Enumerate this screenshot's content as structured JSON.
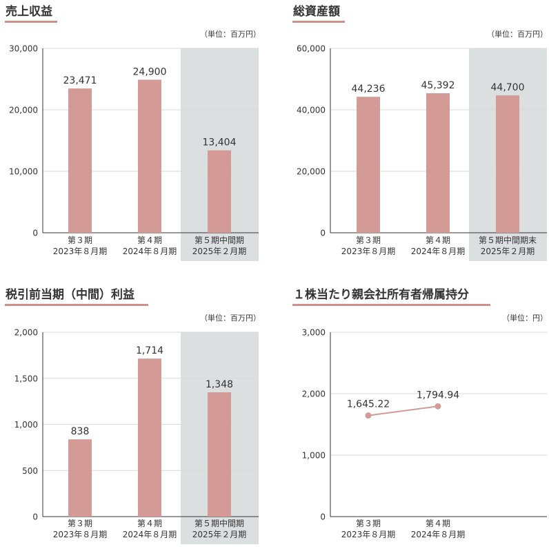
{
  "colors": {
    "bar": "#d49a95",
    "line": "#d49a95",
    "shade": "#dcdfdf",
    "underline": "#cf8f8a",
    "axis": "#333333",
    "grid": "#d9d9d9",
    "text": "#333333"
  },
  "chart_data": [
    {
      "type": "bar",
      "title": "売上収益",
      "unit": "（単位：百万円）",
      "ylim": [
        0,
        30000
      ],
      "yticks": [
        "0",
        "10,000",
        "20,000",
        "30,000"
      ],
      "ytick_values": [
        0,
        10000,
        20000,
        30000
      ],
      "shaded_category": 2,
      "categories": [
        {
          "label1": "第３期",
          "label2": "2023年８月期"
        },
        {
          "label1": "第４期",
          "label2": "2024年８月期"
        },
        {
          "label1": "第５期中間期",
          "label2": "2025年２月期"
        }
      ],
      "values": [
        23471,
        24900,
        13404
      ],
      "value_labels": [
        "23,471",
        "24,900",
        "13,404"
      ]
    },
    {
      "type": "bar",
      "title": "総資産額",
      "unit": "（単位：百万円）",
      "ylim": [
        0,
        60000
      ],
      "yticks": [
        "0",
        "20,000",
        "40,000",
        "60,000"
      ],
      "ytick_values": [
        0,
        20000,
        40000,
        60000
      ],
      "shaded_category": 2,
      "categories": [
        {
          "label1": "第３期",
          "label2": "2023年８月期"
        },
        {
          "label1": "第４期",
          "label2": "2024年８月期"
        },
        {
          "label1": "第５期中間期末",
          "label2": "2025年２月期"
        }
      ],
      "values": [
        44236,
        45392,
        44700
      ],
      "value_labels": [
        "44,236",
        "45,392",
        "44,700"
      ]
    },
    {
      "type": "bar",
      "title": "税引前当期（中間）利益",
      "unit": "（単位：百万円）",
      "ylim": [
        0,
        2000
      ],
      "yticks": [
        "0",
        "500",
        "1,000",
        "1,500",
        "2,000"
      ],
      "ytick_values": [
        0,
        500,
        1000,
        1500,
        2000
      ],
      "shaded_category": 2,
      "categories": [
        {
          "label1": "第３期",
          "label2": "2023年８月期"
        },
        {
          "label1": "第４期",
          "label2": "2024年８月期"
        },
        {
          "label1": "第５期中間期",
          "label2": "2025年２月期"
        }
      ],
      "values": [
        838,
        1714,
        1348
      ],
      "value_labels": [
        "838",
        "1,714",
        "1,348"
      ]
    },
    {
      "type": "line",
      "title": "１株当たり親会社所有者帰属持分",
      "unit": "（単位：円）",
      "ylim": [
        0,
        3000
      ],
      "yticks": [
        "0",
        "1,000",
        "2,000",
        "3,000"
      ],
      "ytick_values": [
        0,
        1000,
        2000,
        3000
      ],
      "shaded_category": null,
      "slots": 3,
      "categories": [
        {
          "label1": "第３期",
          "label2": "2023年８月期"
        },
        {
          "label1": "第４期",
          "label2": "2024年８月期"
        }
      ],
      "values": [
        1645.22,
        1794.94
      ],
      "value_labels": [
        "1,645.22",
        "1,794.94"
      ]
    }
  ]
}
